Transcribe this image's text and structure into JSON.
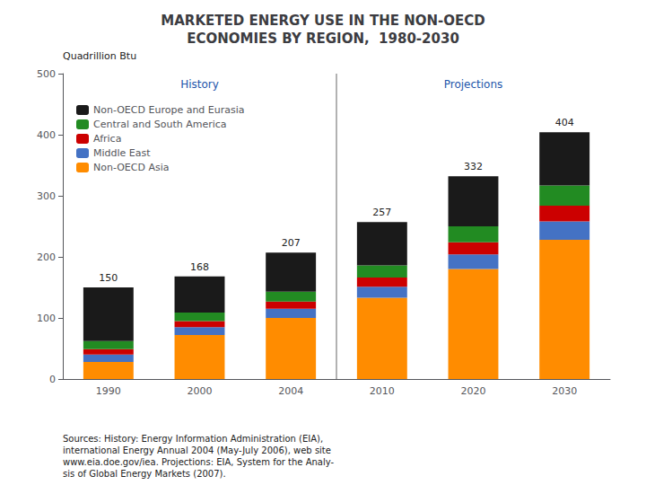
{
  "chart_data": {
    "type": "bar",
    "title": "MARKETED ENERGY USE IN THE NON-OECD\nECONOMIES BY REGION,  1980-2030",
    "categories": [
      "1990",
      "2000",
      "2004",
      "2010",
      "2020",
      "2030"
    ],
    "series": [
      {
        "name": "Non-OECD Asia",
        "color": "#FF8C00",
        "values": [
          28,
          72,
          100,
          133,
          180,
          228
        ]
      },
      {
        "name": "Middle East",
        "color": "#4472C4",
        "values": [
          12,
          13,
          15,
          18,
          24,
          30
        ]
      },
      {
        "name": "Africa",
        "color": "#CC0000",
        "values": [
          9,
          10,
          12,
          15,
          20,
          26
        ]
      },
      {
        "name": "Central and South America",
        "color": "#228B22",
        "values": [
          13,
          14,
          16,
          20,
          26,
          33
        ]
      },
      {
        "name": "Non-OECD Europe and Eurasia",
        "color": "#1A1A1A",
        "values": [
          88,
          59,
          64,
          71,
          82,
          87
        ]
      }
    ],
    "totals": [
      150,
      168,
      207,
      257,
      332,
      404
    ],
    "stacked": true,
    "ylabel": "Quadrillion Btu",
    "ylim": [
      0,
      500
    ],
    "yticks": [
      0,
      100,
      200,
      300,
      400,
      500
    ],
    "grid": false,
    "legend": "upper left",
    "annotations": [
      "History",
      "Projections",
      "Sources: History: Energy Information Administration (EIA),\ninternational Energy Annual 2004 (May-July 2006), web site\nwww.eia.doe.gov/iea. Projections: EIA, System for the Analy-\nsis of Global Energy Markets (2007)."
    ]
  }
}
